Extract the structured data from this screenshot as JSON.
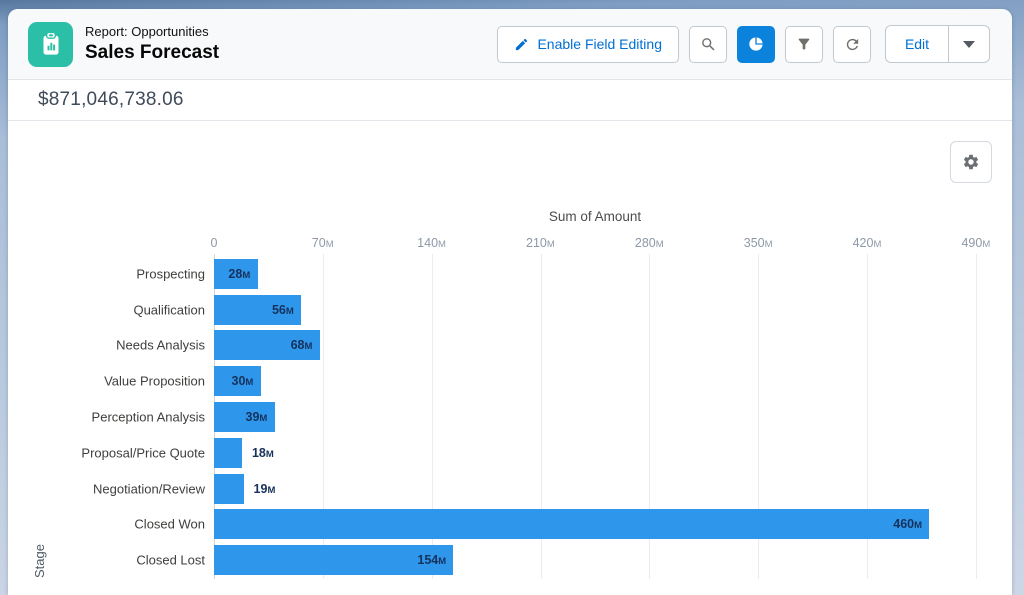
{
  "header": {
    "report_type": "Report: Opportunities",
    "title": "Sales Forecast"
  },
  "toolbar": {
    "enable_field_editing_label": "Enable Field Editing",
    "edit_label": "Edit"
  },
  "summary": {
    "total_amount": "$871,046,738.06"
  },
  "icons": {
    "report": "clipboard-chart-icon",
    "enable_field_editing": "pencil-icon",
    "search": "magnifier-icon",
    "chart_toggle": "pie-chart-icon",
    "filter": "funnel-icon",
    "refresh": "circular-arrow-icon",
    "edit_dropdown": "caret-down-icon",
    "chart_settings": "gear-icon"
  },
  "colors": {
    "brand_blue": "#0070d2",
    "active_button_blue": "#0b83dd",
    "bar_blue": "#2e97ec",
    "icon_teal": "#2cbfa7",
    "value_navy": "#16325c"
  },
  "chart_data": {
    "type": "bar",
    "orientation": "horizontal",
    "title": "Sum of Amount",
    "xlabel": "Sum of Amount",
    "ylabel": "Stage",
    "categories": [
      "Prospecting",
      "Qualification",
      "Needs Analysis",
      "Value Proposition",
      "Perception Analysis",
      "Proposal/Price Quote",
      "Negotiation/Review",
      "Closed Won",
      "Closed Lost"
    ],
    "values": [
      28,
      56,
      68,
      30,
      39,
      18,
      19,
      460,
      154
    ],
    "value_labels": [
      "28M",
      "56M",
      "68M",
      "30M",
      "39M",
      "18M",
      "19M",
      "460M",
      "154M"
    ],
    "unit": "M",
    "x_ticks": [
      0,
      70,
      140,
      210,
      280,
      350,
      420,
      490
    ],
    "x_tick_labels": [
      "0",
      "70M",
      "140M",
      "210M",
      "280M",
      "350M",
      "420M",
      "490M"
    ],
    "xlim": [
      0,
      490
    ],
    "grid": true,
    "legend": "none",
    "value_label_position": "inside-end, outside for short bars"
  }
}
